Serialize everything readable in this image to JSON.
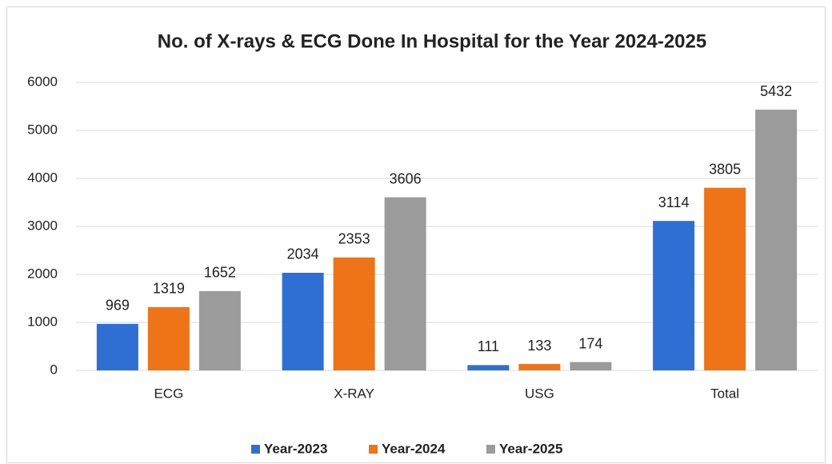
{
  "chart_data": {
    "type": "bar",
    "title": "No. of X-rays & ECG Done In Hospital for the Year 2024-2025",
    "categories": [
      "ECG",
      "X-RAY",
      "USG",
      "Total"
    ],
    "series": [
      {
        "name": "Year-2023",
        "color": "#2f6fd3",
        "values": [
          969,
          2034,
          111,
          3114
        ]
      },
      {
        "name": "Year-2024",
        "color": "#ee7417",
        "values": [
          1319,
          2353,
          133,
          3805
        ]
      },
      {
        "name": "Year-2025",
        "color": "#9b9b9b",
        "values": [
          1652,
          3606,
          174,
          5432
        ]
      }
    ],
    "ylim": [
      0,
      6000
    ],
    "yticks": [
      0,
      1000,
      2000,
      3000,
      4000,
      5000,
      6000
    ],
    "grid": true,
    "legend": "bottom"
  }
}
